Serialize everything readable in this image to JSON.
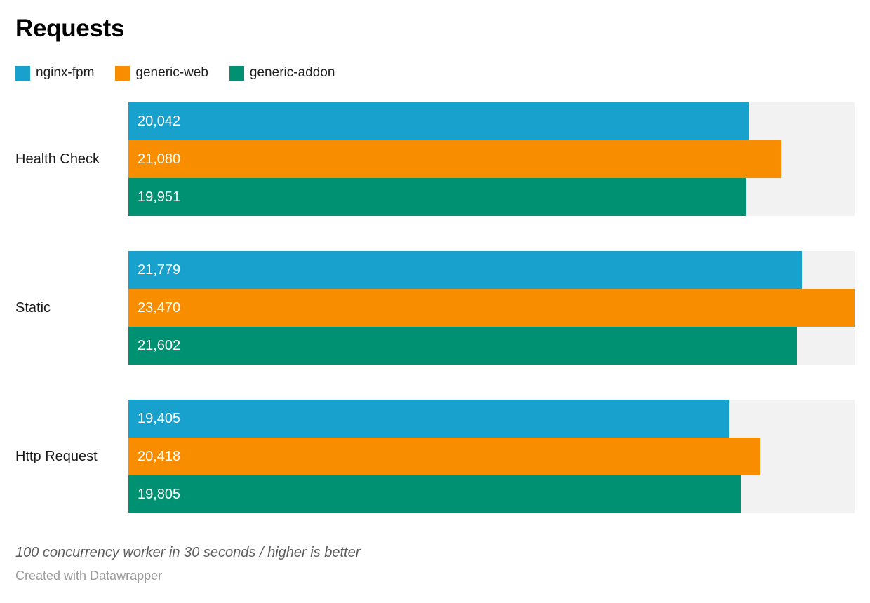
{
  "header": {
    "title": "Requests"
  },
  "legend": [
    {
      "label": "nginx-fpm",
      "color": "#18a1cd"
    },
    {
      "label": "generic-web",
      "color": "#f98d00"
    },
    {
      "label": "generic-addon",
      "color": "#009173"
    }
  ],
  "chart_data": {
    "type": "bar",
    "orientation": "horizontal",
    "title": "Requests",
    "categories": [
      "Health Check",
      "Static",
      "Http Request"
    ],
    "series": [
      {
        "name": "nginx-fpm",
        "color": "#18a1cd",
        "values": [
          20042,
          21779,
          19405
        ]
      },
      {
        "name": "generic-web",
        "color": "#f98d00",
        "values": [
          21080,
          23470,
          20418
        ]
      },
      {
        "name": "generic-addon",
        "color": "#009173",
        "values": [
          19951,
          21602,
          19805
        ]
      }
    ],
    "value_labels": [
      [
        "20,042",
        "21,779",
        "19,405"
      ],
      [
        "21,080",
        "23,470",
        "20,418"
      ],
      [
        "19,951",
        "21,602",
        "19,805"
      ]
    ],
    "xlim": [
      0,
      23470
    ],
    "grid": false,
    "legend_position": "top",
    "track_color": "#f2f2f2",
    "value_label_color": "#ffffff"
  },
  "footer": {
    "note": "100 concurrency worker in 30 seconds / higher is better",
    "credit": "Created with Datawrapper"
  }
}
